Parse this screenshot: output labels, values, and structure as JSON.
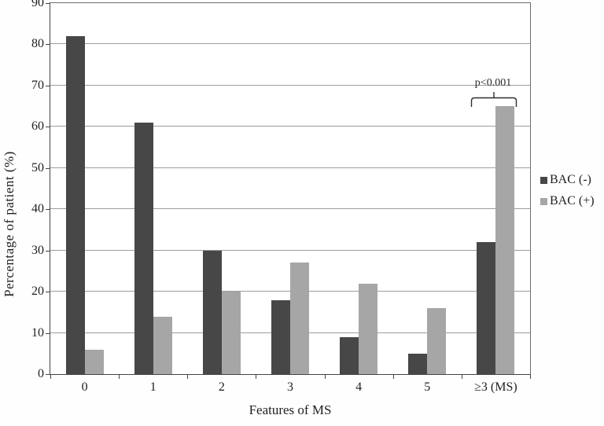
{
  "chart_data": {
    "type": "bar",
    "title": "",
    "xlabel": "Features of MS",
    "ylabel": "Percentage of patient (%)",
    "categories": [
      "0",
      "1",
      "2",
      "3",
      "4",
      "5",
      "≥3 (MS)"
    ],
    "series": [
      {
        "name": "BAC (-)",
        "color": "#474747",
        "values": [
          82,
          61,
          30,
          18,
          9,
          5,
          32
        ]
      },
      {
        "name": "BAC (+)",
        "color": "#a6a6a6",
        "values": [
          6,
          14,
          20,
          27,
          22,
          16,
          65
        ]
      }
    ],
    "ylim": [
      0,
      90
    ],
    "ytick_step": 10,
    "grid": "horizontal",
    "gridline_color": "#9d9d9d",
    "axis_color": "#454545",
    "legend_position": "right",
    "annotation": {
      "text": "p<0.001",
      "category": "≥3 (MS)"
    }
  }
}
